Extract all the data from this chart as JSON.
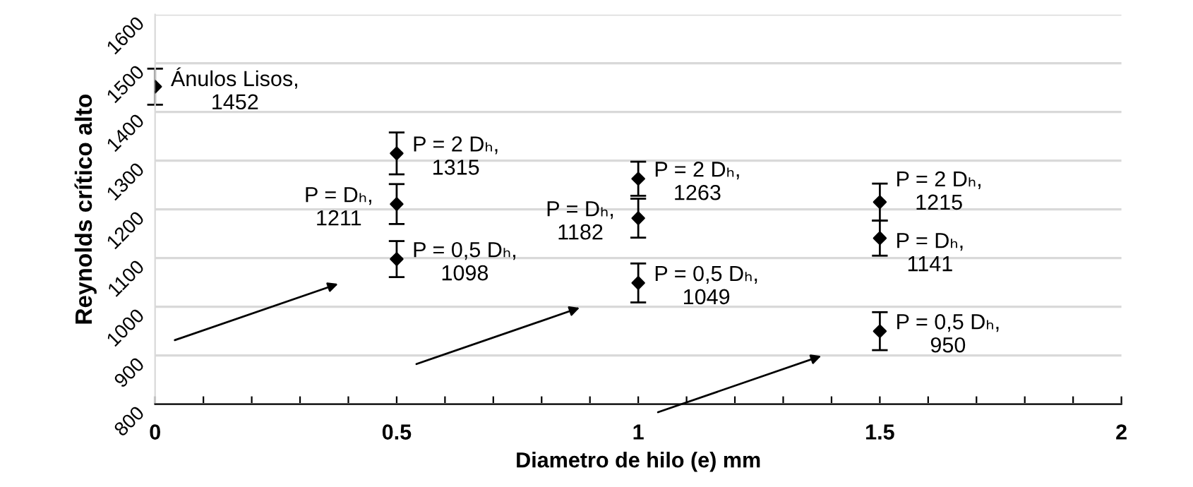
{
  "chart_data": {
    "type": "scatter",
    "xlabel": "Diametro de hilo (e) mm",
    "ylabel": "Reynolds crítico alto",
    "x": [
      0,
      0.5,
      0.5,
      0.5,
      1,
      1,
      1,
      1.5,
      1.5,
      1.5
    ],
    "series": [
      {
        "color": "#000000",
        "values": [
          1452,
          1315,
          1211,
          1098,
          1263,
          1182,
          1049,
          1215,
          1141,
          950
        ],
        "errors": [
          37,
          43,
          41,
          37,
          35,
          40,
          40,
          38,
          36,
          39
        ]
      }
    ],
    "marker": "diamond",
    "xlim": [
      0,
      2
    ],
    "xticks": [
      0,
      {
        "value": 0.1,
        "label": null
      },
      {
        "value": 0.2,
        "label": null
      },
      {
        "value": 0.3,
        "label": null
      },
      {
        "value": 0.4,
        "label": null
      },
      0.5,
      {
        "value": 0.6,
        "label": null
      },
      {
        "value": 0.7,
        "label": null
      },
      {
        "value": 0.8,
        "label": null
      },
      {
        "value": 0.9,
        "label": null
      },
      1,
      {
        "value": 1.1,
        "label": null
      },
      {
        "value": 1.2,
        "label": null
      },
      {
        "value": 1.3,
        "label": null
      },
      {
        "value": 1.4,
        "label": null
      },
      1.5,
      {
        "value": 1.6,
        "label": null
      },
      {
        "value": 1.7,
        "label": null
      },
      {
        "value": 1.8,
        "label": null
      },
      {
        "value": 1.9,
        "label": null
      },
      2
    ],
    "ylim": [
      800,
      1600
    ],
    "yticks": [
      800,
      900,
      1000,
      1100,
      1200,
      1300,
      1400,
      1500,
      1600
    ],
    "grid": "y",
    "annotations": [
      {
        "text": "Ánulos Lisos,\n1452",
        "x": 0,
        "y": 1452
      },
      {
        "text": "P = 2 Dₕ,\n1315",
        "x": 0.5,
        "y": 1315
      },
      {
        "text": "P = Dₕ,\n1211",
        "x": 0.5,
        "y": 1211
      },
      {
        "text": "P = 0,5 Dₕ,\n1098",
        "x": 0.5,
        "y": 1098
      },
      {
        "text": "P = 2 Dₕ,\n1263",
        "x": 1,
        "y": 1263
      },
      {
        "text": "P = Dₕ,\n1182",
        "x": 1,
        "y": 1182
      },
      {
        "text": "P = 0,5 Dₕ,\n1049",
        "x": 1,
        "y": 1049
      },
      {
        "text": "P = 2 Dₕ,\n1215",
        "x": 1.5,
        "y": 1215
      },
      {
        "text": "P = Dₕ,\n1141",
        "x": 1.5,
        "y": 1141
      },
      {
        "text": "P = 0,5 Dₕ,\n950",
        "x": 1.5,
        "y": 950
      }
    ]
  }
}
